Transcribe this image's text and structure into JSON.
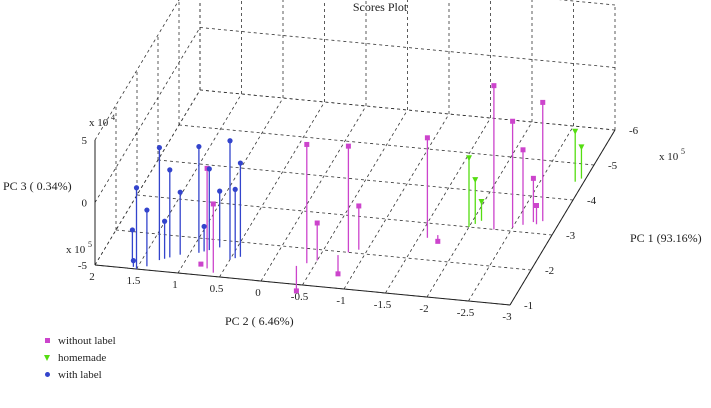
{
  "chart_data": {
    "type": "scatter",
    "title": "Scores Plot",
    "axes": {
      "x": {
        "label": "PC 1 (93.16%)",
        "multiplier": "x 10^5",
        "range": [
          -1,
          -6
        ],
        "ticks": [
          "-1",
          "-2",
          "-3",
          "-4",
          "-5",
          "-6"
        ]
      },
      "y": {
        "label": "PC 2 ( 6.46%)",
        "multiplier": "x 10^5",
        "range": [
          2,
          -3
        ],
        "ticks": [
          "2",
          "1.5",
          "1",
          "0.5",
          "0",
          "-0.5",
          "-1",
          "-1.5",
          "-2",
          "-2.5",
          "-3"
        ]
      },
      "z": {
        "label": "PC 3 ( 0.34%)",
        "multiplier": "x 10^4",
        "range": [
          -5,
          5
        ],
        "ticks": [
          "5",
          "0",
          "-5"
        ]
      }
    },
    "grid": true,
    "stems": true,
    "legend_position": "bottom-left",
    "series": [
      {
        "name": "without label",
        "marker": "square",
        "color": "#cc44cc",
        "points": [
          [
            -1.2,
            0.7,
            3.0
          ],
          [
            -1.1,
            0.6,
            0.5
          ],
          [
            -1.3,
            0.8,
            -5.0
          ],
          [
            -1.6,
            -0.4,
            4.5
          ],
          [
            -1.7,
            -0.5,
            -2.0
          ],
          [
            -1.5,
            -0.3,
            -7.0
          ],
          [
            -2.0,
            -0.8,
            3.5
          ],
          [
            -2.1,
            -0.9,
            -1.5
          ],
          [
            -1.9,
            -0.7,
            -6.5
          ],
          [
            -2.6,
            -1.6,
            3.0
          ],
          [
            -2.7,
            -1.7,
            -5.5
          ],
          [
            -3.0,
            -2.3,
            6.5
          ],
          [
            -3.1,
            -2.5,
            3.5
          ],
          [
            -3.2,
            -2.6,
            1.0
          ],
          [
            -3.3,
            -2.7,
            -1.5
          ],
          [
            -3.25,
            -2.75,
            -3.5
          ],
          [
            -3.35,
            -2.8,
            4.5
          ]
        ]
      },
      {
        "name": "homemade",
        "marker": "triangle",
        "color": "#55dd11",
        "points": [
          [
            -3.0,
            -2.0,
            0.5
          ],
          [
            -3.1,
            -2.05,
            -1.5
          ],
          [
            -3.2,
            -2.1,
            -3.5
          ],
          [
            -4.5,
            -2.9,
            -1.0
          ],
          [
            -4.6,
            -2.95,
            -2.5
          ]
        ]
      },
      {
        "name": "with label",
        "marker": "circle",
        "color": "#3344cc",
        "points": [
          [
            -1.0,
            1.5,
            1.5
          ],
          [
            -1.1,
            1.4,
            -0.5
          ],
          [
            -1.2,
            1.6,
            -2.5
          ],
          [
            -1.05,
            1.55,
            -4.5
          ],
          [
            -1.3,
            1.3,
            4.0
          ],
          [
            -1.4,
            1.2,
            2.0
          ],
          [
            -1.5,
            1.1,
            0.0
          ],
          [
            -1.35,
            1.25,
            -2.0
          ],
          [
            -1.6,
            0.9,
            3.5
          ],
          [
            -1.7,
            0.8,
            1.5
          ],
          [
            -1.8,
            0.7,
            -0.5
          ],
          [
            -1.65,
            0.85,
            -3.0
          ],
          [
            -1.5,
            0.5,
            4.5
          ],
          [
            -1.6,
            0.4,
            2.5
          ],
          [
            -1.55,
            0.45,
            0.5
          ]
        ]
      }
    ]
  },
  "legend": [
    {
      "label": "without label"
    },
    {
      "label": "homemade"
    },
    {
      "label": "with label"
    }
  ]
}
